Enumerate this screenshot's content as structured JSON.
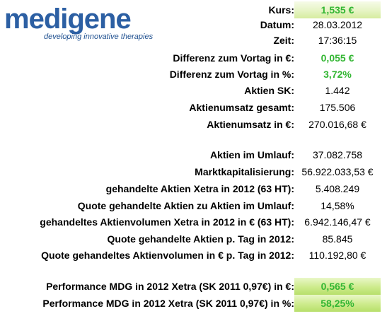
{
  "logo": {
    "name": "medigene",
    "tagline": "developing   innovative therapies"
  },
  "rows": [
    {
      "label": "Kurs:",
      "value": "1,535 €"
    },
    {
      "label": "Datum:",
      "value": "28.03.2012"
    },
    {
      "label": "Zeit:",
      "value": "17:36:15"
    },
    {
      "label": "Differenz zum Vortag in €:",
      "value": "0,055 €"
    },
    {
      "label": "Differenz zum Vortag in %:",
      "value": "3,72%"
    },
    {
      "label": "Aktien SK:",
      "value": "1.442"
    },
    {
      "label": "Aktienumsatz gesamt:",
      "value": "175.506"
    },
    {
      "label": "Aktienumsatz in €:",
      "value": "270.016,68 €"
    },
    {
      "label": "Aktien im Umlauf:",
      "value": "37.082.758"
    },
    {
      "label": "Marktkapitalisierung:",
      "value": "56.922.033,53 €"
    },
    {
      "label": "gehandelte Aktien Xetra in 2012 (63 HT):",
      "value": "5.408.249"
    },
    {
      "label": "Quote gehandelte Aktien zu Aktien im Umlauf:",
      "value": "14,58%"
    },
    {
      "label": "gehandeltes Aktienvolumen Xetra in 2012 in € (63 HT):",
      "value": "6.942.146,47 €"
    },
    {
      "label": "Quote gehandelte Aktien p. Tag in 2012:",
      "value": "85.845"
    },
    {
      "label": "Quote gehandeltes Aktienvolumen in € p. Tag in 2012:",
      "value": "110.192,80 €"
    },
    {
      "label": "Performance MDG in 2012 Xetra (SK 2011 0,97€) in €:",
      "value": "0,565 €"
    },
    {
      "label": "Performance MDG in 2012 Xetra (SK 2011 0,97€) in %:",
      "value": "58,25%"
    }
  ],
  "colors": {
    "positive": "#33b633",
    "logo_blue": "#2c5fa3",
    "highlight": "#cdeb8c"
  }
}
